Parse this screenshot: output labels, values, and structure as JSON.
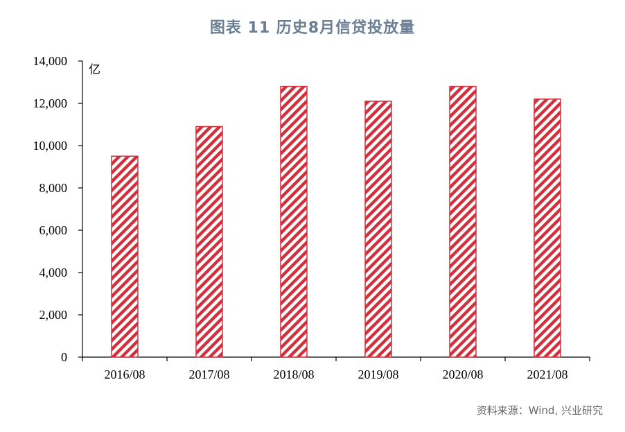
{
  "chart_data": {
    "type": "bar",
    "title": "图表 11  历史8月信贷投放量",
    "unit": "亿",
    "categories": [
      "2016/08",
      "2017/08",
      "2018/08",
      "2019/08",
      "2020/08",
      "2021/08"
    ],
    "values": [
      9500,
      10900,
      12800,
      12100,
      12800,
      12200
    ],
    "ylim": [
      0,
      14000
    ],
    "yticks": [
      "0",
      "2,000",
      "4,000",
      "6,000",
      "8,000",
      "10,000",
      "12,000",
      "14,000"
    ],
    "ytick_values": [
      0,
      2000,
      4000,
      6000,
      8000,
      10000,
      12000,
      14000
    ],
    "grid": false,
    "bar_pattern": "diagonal-hatch",
    "bar_color": "#d2303d"
  },
  "source": "资料来源：Wind, 兴业研究"
}
